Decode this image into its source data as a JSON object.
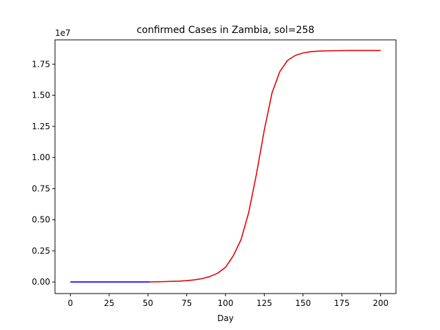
{
  "chart_data": {
    "type": "line",
    "title": "confirmed Cases in Zambia, sol=258",
    "xlabel": "Day",
    "ylabel": "",
    "y_offset_label": "1e7",
    "xlim": [
      -9.9,
      209.9
    ],
    "ylim": [
      -0.093,
      1.945
    ],
    "x_ticks": [
      0,
      25,
      50,
      75,
      100,
      125,
      150,
      175,
      200
    ],
    "y_ticks": [
      0.0,
      0.25,
      0.5,
      0.75,
      1.0,
      1.25,
      1.5,
      1.75
    ],
    "y_tick_labels": [
      "0.00",
      "0.25",
      "0.50",
      "0.75",
      "1.00",
      "1.25",
      "1.50",
      "1.75"
    ],
    "grid": false,
    "series": [
      {
        "color": "#e00000",
        "x": [
          0,
          10,
          20,
          30,
          40,
          50,
          60,
          70,
          75,
          80,
          85,
          90,
          95,
          100,
          105,
          110,
          115,
          120,
          125,
          130,
          135,
          140,
          145,
          150,
          155,
          160,
          170,
          180,
          190,
          200
        ],
        "values": [
          0.0,
          0.0,
          0.0,
          0.0,
          0.0,
          0.0,
          0.003,
          0.007,
          0.011,
          0.017,
          0.027,
          0.044,
          0.071,
          0.118,
          0.21,
          0.34,
          0.56,
          0.87,
          1.22,
          1.52,
          1.69,
          1.78,
          1.82,
          1.84,
          1.85,
          1.855,
          1.858,
          1.86,
          1.86,
          1.86
        ]
      },
      {
        "color": "#1a00ff",
        "x": [
          0,
          10,
          20,
          30,
          40,
          51
        ],
        "values": [
          0.0,
          0.0,
          0.0,
          0.0,
          0.0,
          0.0
        ]
      }
    ]
  }
}
